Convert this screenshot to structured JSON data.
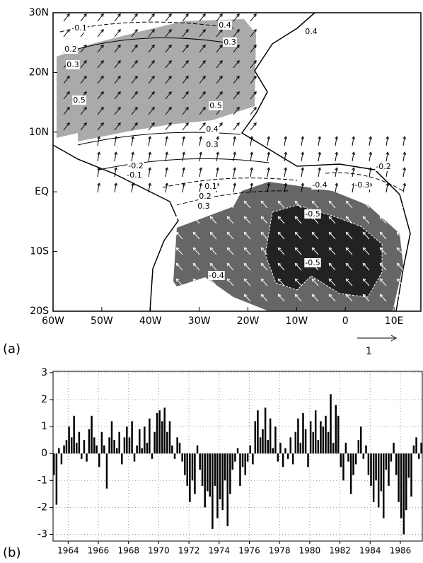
{
  "chart_data": [
    {
      "type": "map",
      "xlim": [
        -60,
        15.5
      ],
      "ylim": [
        -20,
        30
      ],
      "xticks": [
        {
          "value": -60,
          "label": "60W"
        },
        {
          "value": -50,
          "label": "50W"
        },
        {
          "value": -40,
          "label": "40W"
        },
        {
          "value": -30,
          "label": "30W"
        },
        {
          "value": -20,
          "label": "20W"
        },
        {
          "value": -10,
          "label": "10W"
        },
        0,
        {
          "value": 10,
          "label": "10E"
        }
      ],
      "yticks": [
        {
          "value": 30,
          "label": "30N"
        },
        {
          "value": 20,
          "label": "20N"
        },
        {
          "value": 10,
          "label": "10N"
        },
        {
          "value": 0,
          "label": "EQ"
        },
        {
          "value": -10,
          "label": "10S"
        },
        {
          "value": -20,
          "label": "20S"
        }
      ],
      "annotations": [
        "-0.1",
        "0.2",
        "0.3",
        "0.4",
        "0.3",
        "0.4",
        "0.5",
        "0.5",
        "0.4",
        "0.3",
        "-0.2",
        "-0.1",
        "0.1",
        "0.2",
        "0.3",
        "-0.4",
        "-0.3",
        "-0.2",
        "-0.5",
        "-0.5",
        "-0.4"
      ],
      "panel_label": "(a)",
      "vector_scale_label": "1"
    },
    {
      "type": "bar",
      "color": "#000000",
      "grid": true,
      "xlim": [
        1963,
        1987.5
      ],
      "ylim": [
        -3.25,
        3.05
      ],
      "xticks": [
        1964,
        1966,
        1968,
        1970,
        1972,
        1974,
        1976,
        1978,
        1980,
        1982,
        1984,
        1986
      ],
      "yticks": [
        -3,
        -2,
        -1,
        0,
        1,
        2,
        3
      ],
      "x": [
        1963,
        1963.17,
        1963.33,
        1963.5,
        1963.67,
        1963.83,
        1964,
        1964.17,
        1964.33,
        1964.5,
        1964.67,
        1964.83,
        1965,
        1965.17,
        1965.33,
        1965.5,
        1965.67,
        1965.83,
        1966,
        1966.17,
        1966.33,
        1966.5,
        1966.67,
        1966.83,
        1967,
        1967.17,
        1967.33,
        1967.5,
        1967.67,
        1967.83,
        1968,
        1968.17,
        1968.33,
        1968.5,
        1968.67,
        1968.83,
        1969,
        1969.17,
        1969.33,
        1969.5,
        1969.67,
        1969.83,
        1970,
        1970.17,
        1970.33,
        1970.5,
        1970.67,
        1970.83,
        1971,
        1971.17,
        1971.33,
        1971.5,
        1971.67,
        1971.83,
        1972,
        1972.17,
        1972.33,
        1972.5,
        1972.67,
        1972.83,
        1973,
        1973.17,
        1973.33,
        1973.5,
        1973.67,
        1973.83,
        1974,
        1974.17,
        1974.33,
        1974.5,
        1974.67,
        1974.83,
        1975,
        1975.17,
        1975.33,
        1975.5,
        1975.67,
        1975.83,
        1976,
        1976.17,
        1976.33,
        1976.5,
        1976.67,
        1976.83,
        1977,
        1977.17,
        1977.33,
        1977.5,
        1977.67,
        1977.83,
        1978,
        1978.17,
        1978.33,
        1978.5,
        1978.67,
        1978.83,
        1979,
        1979.17,
        1979.33,
        1979.5,
        1979.67,
        1979.83,
        1980,
        1980.17,
        1980.33,
        1980.5,
        1980.67,
        1980.83,
        1981,
        1981.17,
        1981.33,
        1981.5,
        1981.67,
        1981.83,
        1982,
        1982.17,
        1982.33,
        1982.5,
        1982.67,
        1982.83,
        1983,
        1983.17,
        1983.33,
        1983.5,
        1983.67,
        1983.83,
        1984,
        1984.17,
        1984.33,
        1984.5,
        1984.67,
        1984.83,
        1985,
        1985.17,
        1985.33,
        1985.5,
        1985.67,
        1985.83,
        1986,
        1986.17,
        1986.33,
        1986.5,
        1986.67,
        1986.83,
        1987,
        1987.17,
        1987.33
      ],
      "values": [
        -0.8,
        -1.9,
        0.2,
        -0.4,
        0.3,
        0.5,
        1.0,
        0.6,
        1.4,
        0.4,
        0.8,
        -0.2,
        0.5,
        -0.3,
        0.9,
        1.4,
        0.6,
        0.3,
        -0.5,
        0.8,
        0.3,
        -1.3,
        0.6,
        1.2,
        0.5,
        0.2,
        0.8,
        -0.4,
        0.6,
        1.0,
        0.6,
        1.2,
        -0.3,
        0.3,
        0.9,
        0.2,
        1.0,
        0.4,
        1.3,
        -0.2,
        0.8,
        1.5,
        1.6,
        1.2,
        1.7,
        0.8,
        1.2,
        0.3,
        -0.2,
        0.6,
        0.4,
        -0.3,
        -0.8,
        -1.2,
        -1.8,
        -1.0,
        -1.5,
        0.3,
        -0.6,
        -1.2,
        -2.0,
        -1.4,
        -1.6,
        -2.8,
        -1.2,
        -2.4,
        -1.7,
        -2.1,
        -1.0,
        -2.7,
        -1.5,
        -0.6,
        -0.3,
        0.2,
        -1.2,
        -0.5,
        -0.8,
        -0.3,
        0.3,
        -0.4,
        1.2,
        1.6,
        0.6,
        0.9,
        1.7,
        0.5,
        1.3,
        0.2,
        1.0,
        -0.3,
        0.4,
        -0.5,
        0.2,
        -0.2,
        0.6,
        -0.4,
        0.8,
        1.3,
        0.4,
        1.5,
        0.9,
        -0.5,
        1.2,
        0.8,
        1.6,
        0.5,
        1.2,
        1.0,
        1.4,
        0.8,
        2.2,
        0.4,
        1.8,
        1.4,
        -0.5,
        -1.0,
        0.4,
        -0.3,
        -1.5,
        -0.8,
        -0.4,
        0.5,
        1.0,
        -0.2,
        0.3,
        -0.8,
        -1.2,
        -1.8,
        -1.0,
        -2.0,
        -1.4,
        -2.4,
        -0.6,
        -1.2,
        -0.3,
        0.4,
        -0.8,
        -1.8,
        -2.4,
        -3.0,
        -2.1,
        -0.9,
        -1.6,
        0.3,
        0.6,
        -0.2,
        0.4
      ],
      "panel_label": "(b)"
    }
  ]
}
